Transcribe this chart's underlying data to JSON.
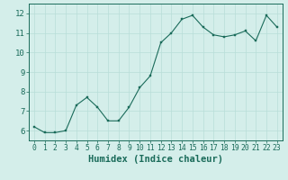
{
  "x": [
    0,
    1,
    2,
    3,
    4,
    5,
    6,
    7,
    8,
    9,
    10,
    11,
    12,
    13,
    14,
    15,
    16,
    17,
    18,
    19,
    20,
    21,
    22,
    23
  ],
  "y": [
    6.2,
    5.9,
    5.9,
    6.0,
    7.3,
    7.7,
    7.2,
    6.5,
    6.5,
    7.2,
    8.2,
    8.8,
    10.5,
    11.0,
    11.7,
    11.9,
    11.3,
    10.9,
    10.8,
    10.9,
    11.1,
    10.6,
    11.9,
    11.3
  ],
  "xlabel": "Humidex (Indice chaleur)",
  "xlim": [
    -0.5,
    23.5
  ],
  "ylim": [
    5.5,
    12.5
  ],
  "yticks": [
    6,
    7,
    8,
    9,
    10,
    11,
    12
  ],
  "xticks": [
    0,
    1,
    2,
    3,
    4,
    5,
    6,
    7,
    8,
    9,
    10,
    11,
    12,
    13,
    14,
    15,
    16,
    17,
    18,
    19,
    20,
    21,
    22,
    23
  ],
  "line_color": "#1a6b5a",
  "marker_color": "#1a6b5a",
  "bg_color": "#d4eeea",
  "grid_color": "#b8ddd8",
  "axes_color": "#1a6b5a",
  "tick_color": "#1a6b5a",
  "label_color": "#1a6b5a",
  "tick_fontsize": 6.5,
  "xlabel_fontsize": 7.5,
  "linewidth": 0.8,
  "markersize": 2.0
}
